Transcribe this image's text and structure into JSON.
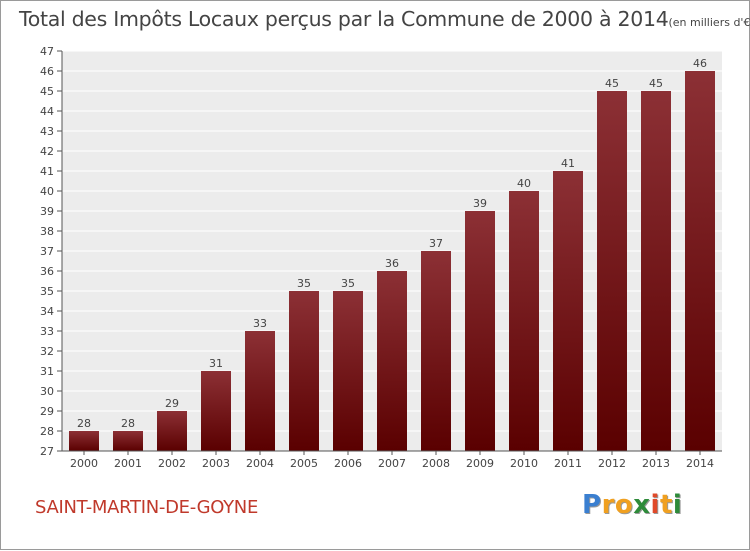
{
  "title": {
    "main": "Total des Impôts Locaux perçus par la Commune de 2000 à 2014",
    "unit": "(en milliers d'€)"
  },
  "commune": "SAINT-MARTIN-DE-GOYNE",
  "logo": {
    "letters": [
      "P",
      "r",
      "o",
      "x",
      "i",
      "t",
      "i"
    ],
    "colors": [
      "#3a7fd0",
      "#f0a020",
      "#f0a020",
      "#2e8b3a",
      "#e04a2a",
      "#f0a020",
      "#2e8b3a"
    ]
  },
  "chart_data": {
    "type": "bar",
    "categories": [
      "2000",
      "2001",
      "2002",
      "2003",
      "2004",
      "2005",
      "2006",
      "2007",
      "2008",
      "2009",
      "2010",
      "2011",
      "2012",
      "2013",
      "2014"
    ],
    "values": [
      28,
      28,
      29,
      31,
      33,
      35,
      35,
      36,
      37,
      39,
      40,
      41,
      45,
      45,
      46
    ],
    "data_labels": [
      "28",
      "28",
      "29",
      "31",
      "33",
      "35",
      "35",
      "36",
      "37",
      "39",
      "40",
      "41",
      "45",
      "45",
      "46"
    ],
    "ylim": [
      27,
      47
    ],
    "yticks": [
      27,
      28,
      29,
      30,
      31,
      32,
      33,
      34,
      35,
      36,
      37,
      38,
      39,
      40,
      41,
      42,
      43,
      44,
      45,
      46,
      47
    ],
    "grid": true,
    "bar_color_top": "#8c3035",
    "bar_color_bottom": "#5a0000",
    "plot_background": "#ececec"
  }
}
